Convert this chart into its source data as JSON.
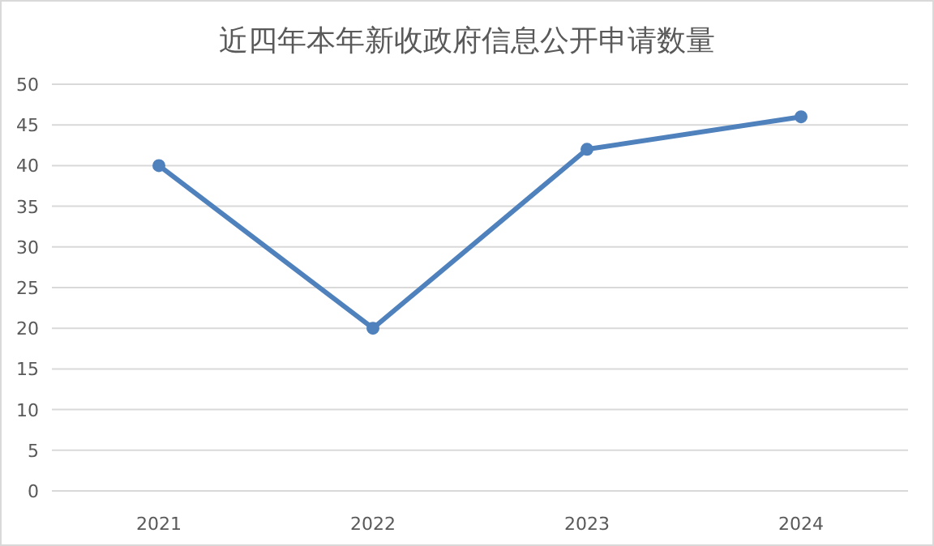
{
  "chart_data": {
    "type": "line",
    "title": "近四年本年新收政府信息公开申请数量",
    "categories": [
      "2021",
      "2022",
      "2023",
      "2024"
    ],
    "series": [
      {
        "color": "#4f81bd",
        "values": [
          40,
          20,
          42,
          46
        ]
      }
    ],
    "ylim": [
      0,
      50
    ],
    "yticks": [
      0,
      5,
      10,
      15,
      20,
      25,
      30,
      35,
      40,
      45,
      50
    ],
    "grid": "y",
    "marker": "circle",
    "line_style": "solid"
  }
}
